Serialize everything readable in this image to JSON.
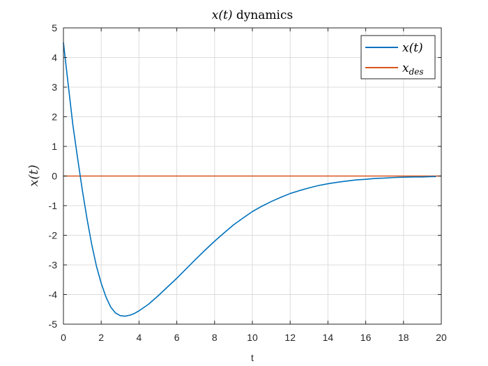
{
  "chart_data": {
    "type": "line",
    "title_math": "x(t)",
    "title_rest": " dynamics",
    "xlabel": "t",
    "ylabel_math": "x(t)",
    "xlim": [
      0,
      20
    ],
    "ylim": [
      -5,
      5
    ],
    "xticks": [
      0,
      2,
      4,
      6,
      8,
      10,
      12,
      14,
      16,
      18,
      20
    ],
    "yticks": [
      -5,
      -4,
      -3,
      -2,
      -1,
      0,
      1,
      2,
      3,
      4,
      5
    ],
    "grid": true,
    "legend_location": "top-right",
    "series": [
      {
        "name": "x(t)",
        "color": "#0072BD",
        "x": [
          0,
          0.25,
          0.5,
          0.75,
          1.0,
          1.25,
          1.5,
          1.75,
          2.0,
          2.25,
          2.5,
          2.75,
          3.0,
          3.25,
          3.5,
          3.75,
          4.0,
          4.5,
          5.0,
          5.5,
          6.0,
          6.5,
          7.0,
          7.5,
          8.0,
          8.5,
          9.0,
          9.5,
          10.0,
          10.5,
          11.0,
          11.5,
          12.0,
          12.5,
          13.0,
          13.5,
          14.0,
          14.5,
          15.0,
          15.5,
          16.0,
          16.5,
          17.0,
          17.5,
          18.0,
          18.5,
          19.0,
          19.5,
          19.7
        ],
        "y": [
          4.5,
          3.1,
          1.72,
          0.6,
          -0.48,
          -1.45,
          -2.32,
          -3.05,
          -3.62,
          -4.08,
          -4.42,
          -4.62,
          -4.71,
          -4.73,
          -4.7,
          -4.64,
          -4.55,
          -4.33,
          -4.05,
          -3.75,
          -3.45,
          -3.13,
          -2.81,
          -2.5,
          -2.2,
          -1.92,
          -1.65,
          -1.42,
          -1.2,
          -1.02,
          -0.86,
          -0.72,
          -0.59,
          -0.49,
          -0.4,
          -0.32,
          -0.26,
          -0.21,
          -0.17,
          -0.13,
          -0.11,
          -0.08,
          -0.07,
          -0.05,
          -0.04,
          -0.03,
          -0.03,
          -0.02,
          -0.02
        ]
      },
      {
        "name": "x_des",
        "label_base": "x",
        "label_sub": "des",
        "color": "#D95319",
        "x": [
          0,
          20
        ],
        "y": [
          0,
          0
        ]
      }
    ]
  }
}
